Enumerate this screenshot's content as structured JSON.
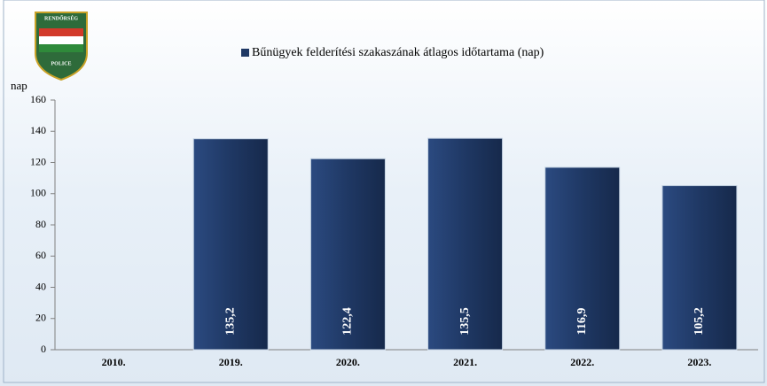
{
  "logo": {
    "top": "RENDŐRSÉG",
    "bottom": "POLICE"
  },
  "chart_data": {
    "type": "bar",
    "y_label": "nap",
    "categories": [
      "2010.",
      "2019.",
      "2020.",
      "2021.",
      "2022.",
      "2023."
    ],
    "series": [
      {
        "name": "Bűnügyek felderítési szakaszának átlagos időtartama (nap)",
        "color": "#1f3864",
        "values": [
          null,
          135.2,
          122.4,
          135.5,
          116.9,
          105.2
        ],
        "value_labels": [
          null,
          "135,2",
          "122,4",
          "135,5",
          "116,9",
          "105,2"
        ]
      }
    ],
    "ylim": [
      0,
      160
    ],
    "yticks": [
      0,
      20,
      40,
      60,
      80,
      100,
      120,
      140,
      160
    ],
    "legend": "top"
  }
}
